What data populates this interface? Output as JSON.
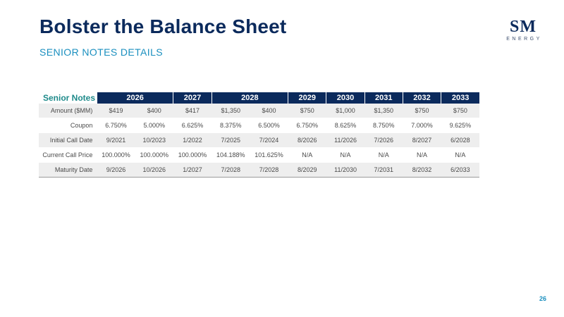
{
  "title": "Bolster the Balance Sheet",
  "subtitle": "SENIOR NOTES DETAILS",
  "logo": {
    "main": "SM",
    "sub": "ENERGY"
  },
  "table": {
    "corner": "Senior Notes",
    "headers": [
      "2026",
      "2027",
      "2028",
      "2029",
      "2030",
      "2031",
      "2032",
      "2033"
    ],
    "rows": [
      {
        "label": "Amount ($MM)",
        "cells": [
          "$419",
          "$400",
          "$417",
          "$1,350",
          "$400",
          "$750",
          "$1,000",
          "$1,350",
          "$750",
          "$750"
        ]
      },
      {
        "label": "Coupon",
        "cells": [
          "6.750%",
          "5.000%",
          "6.625%",
          "8.375%",
          "6.500%",
          "6.750%",
          "8.625%",
          "8.750%",
          "7.000%",
          "9.625%"
        ]
      },
      {
        "label": "Initial Call Date",
        "cells": [
          "9/2021",
          "10/2023",
          "1/2022",
          "7/2025",
          "7/2024",
          "8/2026",
          "11/2026",
          "7/2026",
          "8/2027",
          "6/2028"
        ]
      },
      {
        "label": "Current Call Price",
        "cells": [
          "100.000%",
          "100.000%",
          "100.000%",
          "104.188%",
          "101.625%",
          "N/A",
          "N/A",
          "N/A",
          "N/A",
          "N/A"
        ]
      },
      {
        "label": "Maturity Date",
        "cells": [
          "9/2026",
          "10/2026",
          "1/2027",
          "7/2028",
          "7/2028",
          "8/2029",
          "11/2030",
          "7/2031",
          "8/2032",
          "6/2033"
        ]
      }
    ]
  },
  "page_number": "26",
  "colors": {
    "navy": "#0b2a5c",
    "accent": "#1a8fbf",
    "teal": "#1e8a8a"
  }
}
